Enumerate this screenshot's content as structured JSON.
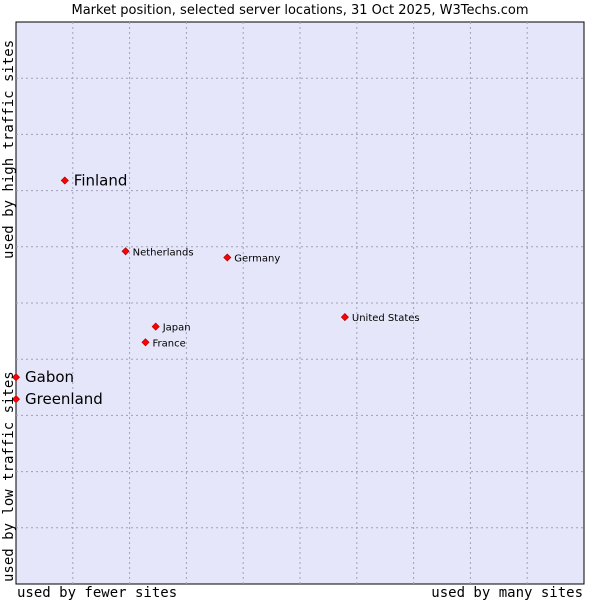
{
  "chart_data": {
    "type": "scatter",
    "title": "Market position, selected server locations, 31 Oct 2025, W3Techs.com",
    "xlabel_left": "used by fewer sites",
    "xlabel_right": "used by many sites",
    "ylabel_top": "used by high traffic sites",
    "ylabel_bottom": "used by low traffic sites",
    "xlim": [
      0,
      100
    ],
    "ylim": [
      0,
      100
    ],
    "grid": true,
    "marker_color": "#ff0000",
    "background_color": "#e6e6fa",
    "points": [
      {
        "name": "Finland",
        "x": 8.6,
        "y": 71.8,
        "emphasis": true
      },
      {
        "name": "Netherlands",
        "x": 19.3,
        "y": 59.2,
        "emphasis": false
      },
      {
        "name": "Germany",
        "x": 37.2,
        "y": 58.1,
        "emphasis": false
      },
      {
        "name": "United States",
        "x": 57.9,
        "y": 47.5,
        "emphasis": false
      },
      {
        "name": "Japan",
        "x": 24.6,
        "y": 45.8,
        "emphasis": false
      },
      {
        "name": "France",
        "x": 22.8,
        "y": 43.0,
        "emphasis": false
      },
      {
        "name": "Gabon",
        "x": 0.0,
        "y": 36.8,
        "emphasis": true
      },
      {
        "name": "Greenland",
        "x": 0.0,
        "y": 32.9,
        "emphasis": true
      }
    ]
  }
}
